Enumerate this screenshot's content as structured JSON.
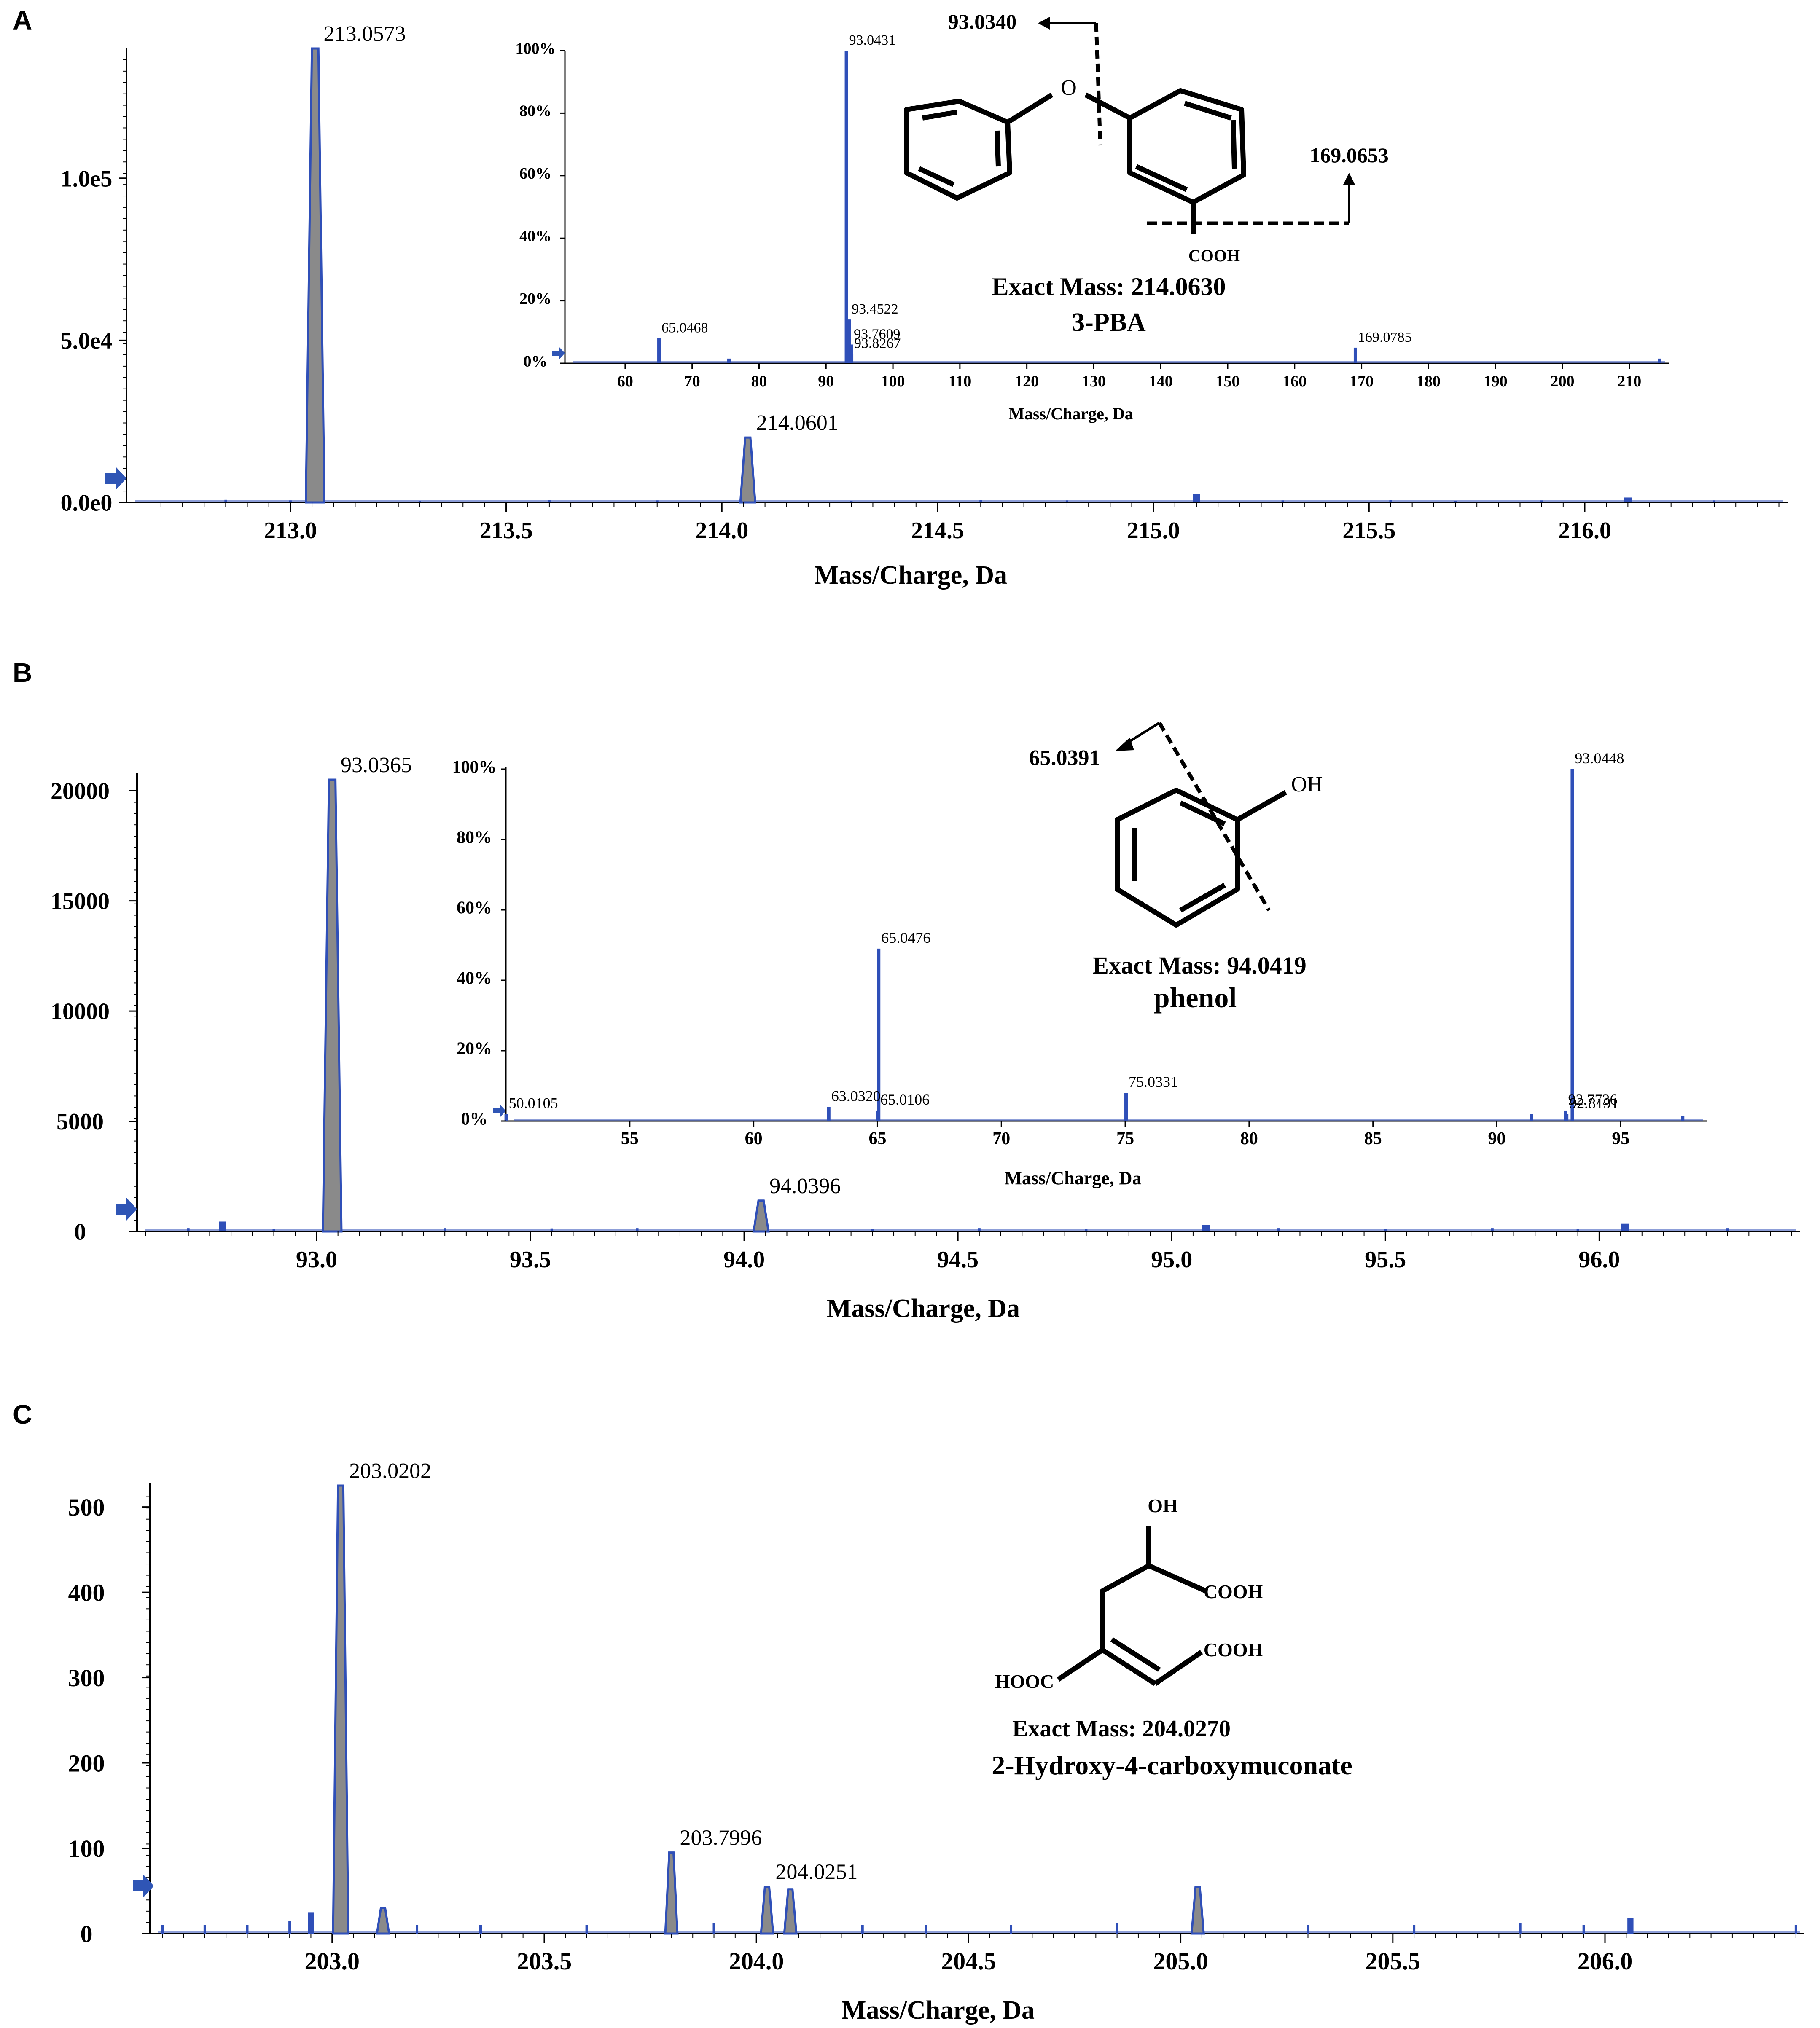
{
  "panels": [
    {
      "letter": "A",
      "main": {
        "xlabel": "Mass/Charge, Da",
        "xlim": [
          212.62,
          216.47
        ],
        "ymax": 140000,
        "xticks": [
          213.0,
          213.5,
          214.0,
          214.5,
          215.0,
          215.5,
          216.0
        ],
        "xtick_labels": [
          "213.0",
          "213.5",
          "214.0",
          "214.5",
          "215.0",
          "215.5",
          "216.0"
        ],
        "yticks": [
          0,
          50000,
          100000
        ],
        "ytick_labels": [
          "0.0e0",
          "5.0e4",
          "1.0e5"
        ],
        "peaks": [
          {
            "x": 213.0573,
            "y": 140000,
            "label": "213.0573"
          },
          {
            "x": 214.0601,
            "y": 20000,
            "label": "214.0601"
          },
          {
            "x": 215.1,
            "y": 2500,
            "label": ""
          },
          {
            "x": 216.1,
            "y": 1500,
            "label": ""
          }
        ],
        "noise": [
          [
            212.85,
            800
          ],
          [
            213.0,
            600
          ],
          [
            213.3,
            500
          ],
          [
            213.6,
            700
          ],
          [
            213.85,
            600
          ],
          [
            214.3,
            500
          ],
          [
            214.6,
            700
          ],
          [
            214.8,
            600
          ],
          [
            215.3,
            600
          ],
          [
            215.55,
            700
          ],
          [
            215.7,
            500
          ],
          [
            215.9,
            600
          ],
          [
            216.3,
            600
          ]
        ]
      },
      "inset": {
        "xlabel": "Mass/Charge, Da",
        "xlim": [
          51,
          216
        ],
        "xticks": [
          60,
          70,
          80,
          90,
          100,
          110,
          120,
          130,
          140,
          150,
          160,
          170,
          180,
          190,
          200,
          210
        ],
        "xtick_labels": [
          "60",
          "70",
          "80",
          "90",
          "100",
          "110",
          "120",
          "130",
          "140",
          "150",
          "160",
          "170",
          "180",
          "190",
          "200",
          "210"
        ],
        "yticks": [
          0,
          20,
          40,
          60,
          80,
          100
        ],
        "ytick_labels": [
          "0%",
          "20%",
          "40%",
          "60%",
          "80%",
          "100%"
        ],
        "peaks": [
          {
            "x": 65.0468,
            "y": 8,
            "label": "65.0468"
          },
          {
            "x": 93.0431,
            "y": 100,
            "label": "93.0431"
          },
          {
            "x": 93.4522,
            "y": 14,
            "label": "93.4522"
          },
          {
            "x": 93.7609,
            "y": 6,
            "label": "93.7609"
          },
          {
            "x": 93.8267,
            "y": 3,
            "label": "93.8267"
          },
          {
            "x": 169.0785,
            "y": 5,
            "label": "169.0785"
          },
          {
            "x": 75.5,
            "y": 1.5,
            "label": ""
          },
          {
            "x": 214.5,
            "y": 1.5,
            "label": ""
          }
        ]
      },
      "annotation": {
        "frag1": "93.0340",
        "frag2": "169.0653",
        "atom_o": "O",
        "group": "COOH",
        "exact_mass": "Exact Mass: 214.0630",
        "name": "3-PBA"
      }
    },
    {
      "letter": "B",
      "main": {
        "xlabel": "Mass/Charge, Da",
        "xlim": [
          92.58,
          96.47
        ],
        "ymax": 20500,
        "xticks": [
          93.0,
          93.5,
          94.0,
          94.5,
          95.0,
          95.5,
          96.0
        ],
        "xtick_labels": [
          "93.0",
          "93.5",
          "94.0",
          "94.5",
          "95.0",
          "95.5",
          "96.0"
        ],
        "yticks": [
          0,
          5000,
          10000,
          15000,
          20000
        ],
        "ytick_labels": [
          "0",
          "5000",
          "10000",
          "15000",
          "20000"
        ],
        "peaks": [
          {
            "x": 93.0365,
            "y": 20500,
            "label": "93.0365"
          },
          {
            "x": 94.0396,
            "y": 1400,
            "label": "94.0396"
          },
          {
            "x": 92.78,
            "y": 450,
            "label": ""
          },
          {
            "x": 95.08,
            "y": 300,
            "label": ""
          },
          {
            "x": 96.06,
            "y": 350,
            "label": ""
          }
        ],
        "noise": [
          [
            92.7,
            150
          ],
          [
            92.9,
            120
          ],
          [
            93.3,
            150
          ],
          [
            93.55,
            140
          ],
          [
            93.75,
            150
          ],
          [
            94.3,
            130
          ],
          [
            94.55,
            150
          ],
          [
            94.8,
            120
          ],
          [
            95.25,
            150
          ],
          [
            95.5,
            130
          ],
          [
            95.75,
            150
          ],
          [
            95.95,
            120
          ],
          [
            96.3,
            150
          ]
        ]
      },
      "inset": {
        "xlabel": "Mass/Charge, Da",
        "xlim": [
          50,
          98.5
        ],
        "xticks": [
          55,
          60,
          65,
          70,
          75,
          80,
          85,
          90,
          95
        ],
        "xtick_labels": [
          "55",
          "60",
          "65",
          "70",
          "75",
          "80",
          "85",
          "90",
          "95"
        ],
        "yticks": [
          0,
          20,
          40,
          60,
          80,
          100
        ],
        "ytick_labels": [
          "0%",
          "20%",
          "40%",
          "60%",
          "80%",
          "100%"
        ],
        "peaks": [
          {
            "x": 50.0105,
            "y": 2,
            "label": "50.0105"
          },
          {
            "x": 63.032,
            "y": 4,
            "label": "63.0320"
          },
          {
            "x": 65.0476,
            "y": 49,
            "label": "65.0476"
          },
          {
            "x": 65.0106,
            "y": 3,
            "label": "65.0106"
          },
          {
            "x": 75.0331,
            "y": 8,
            "label": "75.0331"
          },
          {
            "x": 92.8191,
            "y": 2,
            "label": "92.8191"
          },
          {
            "x": 93.0448,
            "y": 100,
            "label": "93.0448"
          },
          {
            "x": 92.7736,
            "y": 3,
            "label": "92.7736"
          },
          {
            "x": 91.4,
            "y": 2,
            "label": ""
          },
          {
            "x": 97.5,
            "y": 1.5,
            "label": ""
          }
        ]
      },
      "annotation": {
        "frag1": "65.0391",
        "atom_oh": "OH",
        "exact_mass": "Exact Mass: 94.0419",
        "name": "phenol"
      }
    },
    {
      "letter": "C",
      "main": {
        "xlabel": "Mass/Charge, Da",
        "xlim": [
          202.57,
          206.47
        ],
        "ymax": 525,
        "xticks": [
          203.0,
          203.5,
          204.0,
          204.5,
          205.0,
          205.5,
          206.0
        ],
        "xtick_labels": [
          "203.0",
          "203.5",
          "204.0",
          "204.5",
          "205.0",
          "205.5",
          "206.0"
        ],
        "yticks": [
          0,
          100,
          200,
          300,
          400,
          500
        ],
        "ytick_labels": [
          "0",
          "100",
          "200",
          "300",
          "400",
          "500"
        ],
        "peaks": [
          {
            "x": 203.0202,
            "y": 525,
            "label": "203.0202"
          },
          {
            "x": 203.7996,
            "y": 95,
            "label": "203.7996"
          },
          {
            "x": 204.0251,
            "y": 55,
            "label": "204.0251"
          },
          {
            "x": 204.08,
            "y": 52,
            "label": ""
          },
          {
            "x": 205.04,
            "y": 55,
            "label": ""
          },
          {
            "x": 203.12,
            "y": 30,
            "label": ""
          },
          {
            "x": 202.95,
            "y": 25,
            "label": ""
          },
          {
            "x": 206.06,
            "y": 18,
            "label": ""
          }
        ],
        "noise": [
          [
            202.6,
            10
          ],
          [
            202.7,
            10
          ],
          [
            202.8,
            10
          ],
          [
            202.9,
            15
          ],
          [
            203.2,
            10
          ],
          [
            203.35,
            10
          ],
          [
            203.6,
            10
          ],
          [
            203.9,
            12
          ],
          [
            204.25,
            10
          ],
          [
            204.4,
            10
          ],
          [
            204.6,
            10
          ],
          [
            204.85,
            12
          ],
          [
            205.3,
            10
          ],
          [
            205.55,
            10
          ],
          [
            205.8,
            12
          ],
          [
            205.95,
            10
          ],
          [
            206.45,
            10
          ]
        ]
      },
      "annotation": {
        "atom_oh": "OH",
        "group1": "COOH",
        "group2": "COOH",
        "group3": "HOOC",
        "exact_mass": "Exact Mass: 204.0270",
        "name": "2-Hydroxy-4-carboxymuconate"
      }
    }
  ],
  "colors": {
    "peak": "#2f4fb8",
    "peak_fill": "#8a8a8a",
    "axis": "#000000",
    "arrow": "#2f55b5"
  }
}
